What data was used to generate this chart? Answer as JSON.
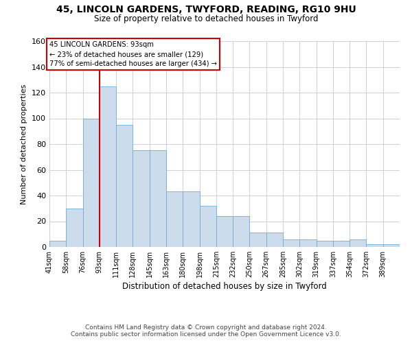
{
  "title_line1": "45, LINCOLN GARDENS, TWYFORD, READING, RG10 9HU",
  "title_line2": "Size of property relative to detached houses in Twyford",
  "xlabel": "Distribution of detached houses by size in Twyford",
  "ylabel": "Number of detached properties",
  "bin_labels": [
    "41sqm",
    "58sqm",
    "76sqm",
    "93sqm",
    "111sqm",
    "128sqm",
    "145sqm",
    "163sqm",
    "180sqm",
    "198sqm",
    "215sqm",
    "232sqm",
    "250sqm",
    "267sqm",
    "285sqm",
    "302sqm",
    "319sqm",
    "337sqm",
    "354sqm",
    "372sqm",
    "389sqm"
  ],
  "bar_heights": [
    5,
    30,
    100,
    125,
    95,
    75,
    75,
    43,
    43,
    32,
    24,
    24,
    11,
    11,
    6,
    6,
    5,
    5,
    6,
    2,
    2
  ],
  "bar_color": "#ccdcec",
  "bar_edge_color": "#6baed6",
  "vline_position": 3,
  "vline_color": "#cc0000",
  "ylim": [
    0,
    160
  ],
  "yticks": [
    0,
    20,
    40,
    60,
    80,
    100,
    120,
    140,
    160
  ],
  "annotation_line1": "45 LINCOLN GARDENS: 93sqm",
  "annotation_line2": "← 23% of detached houses are smaller (129)",
  "annotation_line3": "77% of semi-detached houses are larger (434) →",
  "annotation_box_edge": "#cc0000",
  "footer_line1": "Contains HM Land Registry data © Crown copyright and database right 2024.",
  "footer_line2": "Contains public sector information licensed under the Open Government Licence v3.0.",
  "background_color": "#ffffff",
  "grid_color": "#c8c8d8"
}
